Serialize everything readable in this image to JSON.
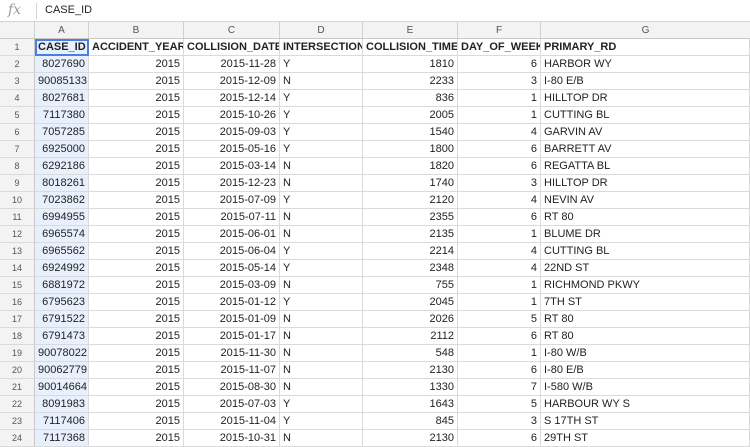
{
  "formula_bar": {
    "fx_label": "fx",
    "value": "CASE_ID"
  },
  "columns": [
    "A",
    "B",
    "C",
    "D",
    "E",
    "F",
    "G"
  ],
  "headers": [
    "CASE_ID",
    "ACCIDENT_YEAR",
    "COLLISION_DATE",
    "INTERSECTION",
    "COLLISION_TIME",
    "DAY_OF_WEEK",
    "PRIMARY_RD"
  ],
  "rows": [
    [
      "8027690",
      "2015",
      "2015-11-28",
      "Y",
      "1810",
      "6",
      "HARBOR WY"
    ],
    [
      "90085133",
      "2015",
      "2015-12-09",
      "N",
      "2233",
      "3",
      "I-80 E/B"
    ],
    [
      "8027681",
      "2015",
      "2015-12-14",
      "Y",
      "836",
      "1",
      "HILLTOP DR"
    ],
    [
      "7117380",
      "2015",
      "2015-10-26",
      "Y",
      "2005",
      "1",
      "CUTTING BL"
    ],
    [
      "7057285",
      "2015",
      "2015-09-03",
      "Y",
      "1540",
      "4",
      "GARVIN AV"
    ],
    [
      "6925000",
      "2015",
      "2015-05-16",
      "Y",
      "1800",
      "6",
      "BARRETT AV"
    ],
    [
      "6292186",
      "2015",
      "2015-03-14",
      "N",
      "1820",
      "6",
      "REGATTA BL"
    ],
    [
      "8018261",
      "2015",
      "2015-12-23",
      "N",
      "1740",
      "3",
      "HILLTOP DR"
    ],
    [
      "7023862",
      "2015",
      "2015-07-09",
      "Y",
      "2120",
      "4",
      "NEVIN AV"
    ],
    [
      "6994955",
      "2015",
      "2015-07-11",
      "N",
      "2355",
      "6",
      "RT 80"
    ],
    [
      "6965574",
      "2015",
      "2015-06-01",
      "N",
      "2135",
      "1",
      "BLUME DR"
    ],
    [
      "6965562",
      "2015",
      "2015-06-04",
      "Y",
      "2214",
      "4",
      "CUTTING BL"
    ],
    [
      "6924992",
      "2015",
      "2015-05-14",
      "Y",
      "2348",
      "4",
      "22ND ST"
    ],
    [
      "6881972",
      "2015",
      "2015-03-09",
      "N",
      "755",
      "1",
      "RICHMOND PKWY"
    ],
    [
      "6795623",
      "2015",
      "2015-01-12",
      "Y",
      "2045",
      "1",
      "7TH ST"
    ],
    [
      "6791522",
      "2015",
      "2015-01-09",
      "N",
      "2026",
      "5",
      "RT 80"
    ],
    [
      "6791473",
      "2015",
      "2015-01-17",
      "N",
      "2112",
      "6",
      "RT 80"
    ],
    [
      "90078022",
      "2015",
      "2015-11-30",
      "N",
      "548",
      "1",
      "I-80 W/B"
    ],
    [
      "90062779",
      "2015",
      "2015-11-07",
      "N",
      "2130",
      "6",
      "I-80 E/B"
    ],
    [
      "90014664",
      "2015",
      "2015-08-30",
      "N",
      "1330",
      "7",
      "I-580 W/B"
    ],
    [
      "8091983",
      "2015",
      "2015-07-03",
      "Y",
      "1643",
      "5",
      "HARBOUR WY S"
    ],
    [
      "7117406",
      "2015",
      "2015-11-04",
      "Y",
      "845",
      "3",
      "S 17TH ST"
    ],
    [
      "7117368",
      "2015",
      "2015-10-31",
      "N",
      "2130",
      "6",
      "29TH ST"
    ]
  ]
}
